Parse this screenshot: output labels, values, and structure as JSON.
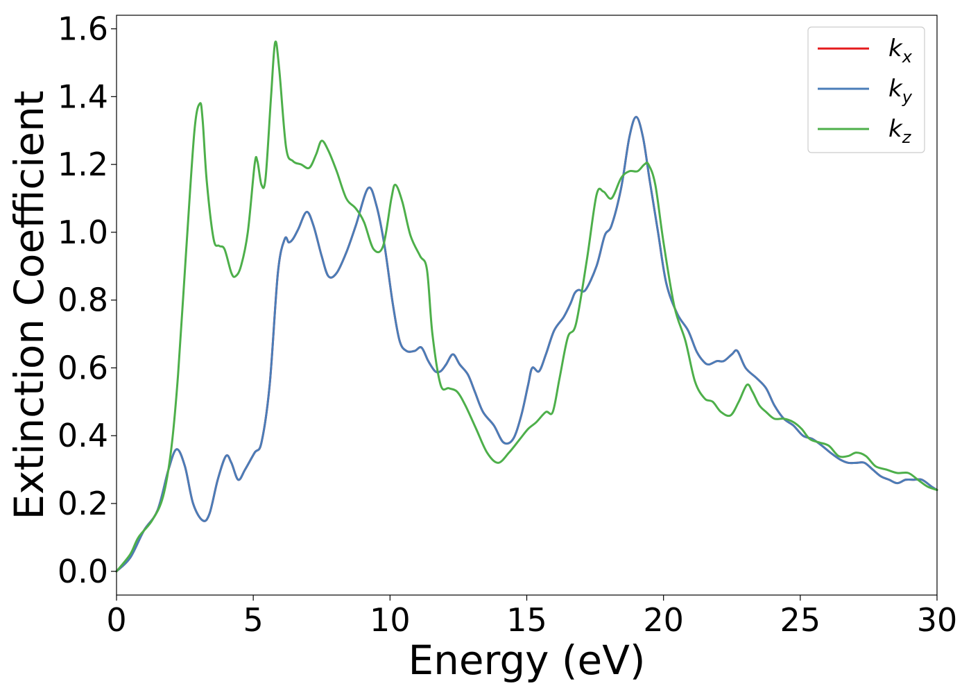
{
  "chart_data": {
    "type": "line",
    "title": "",
    "xlabel": "Energy (eV)",
    "ylabel": "Extinction Coefficient",
    "xlim": [
      0,
      30
    ],
    "ylim": [
      -0.07,
      1.64
    ],
    "xticks": [
      0,
      5,
      10,
      15,
      20,
      25,
      30
    ],
    "xtick_labels": [
      "0",
      "5",
      "10",
      "15",
      "20",
      "25",
      "30"
    ],
    "yticks": [
      0.0,
      0.2,
      0.4,
      0.6,
      0.8,
      1.0,
      1.2,
      1.4,
      1.6
    ],
    "ytick_labels": [
      "0.0",
      "0.2",
      "0.4",
      "0.6",
      "0.8",
      "1.0",
      "1.2",
      "1.4",
      "1.6"
    ],
    "grid": false,
    "legend_position": "top-right",
    "series": [
      {
        "name": "k_x",
        "label_main": "k",
        "label_sub": "x",
        "color": "#e41a1c",
        "x": [
          0,
          0.5,
          1,
          1.5,
          1.9,
          2.2,
          2.5,
          2.8,
          3.15,
          3.4,
          3.7,
          4,
          4.2,
          4.45,
          4.7,
          5.05,
          5.3,
          5.6,
          5.9,
          6.15,
          6.3,
          6.45,
          6.65,
          6.95,
          7.2,
          7.5,
          7.75,
          8.05,
          8.4,
          8.75,
          9.2,
          9.5,
          9.8,
          10.1,
          10.35,
          10.6,
          10.9,
          11.15,
          11.4,
          11.65,
          11.85,
          12.05,
          12.3,
          12.55,
          12.85,
          13.1,
          13.4,
          13.8,
          14.15,
          14.5,
          14.8,
          15.05,
          15.2,
          15.45,
          15.7,
          16,
          16.35,
          16.6,
          16.75,
          16.9,
          17.15,
          17.55,
          17.85,
          18.1,
          18.45,
          18.75,
          19,
          19.25,
          19.5,
          19.8,
          20.1,
          20.5,
          20.9,
          21.2,
          21.45,
          21.65,
          21.95,
          22.2,
          22.5,
          22.7,
          23,
          23.4,
          23.75,
          24.05,
          24.4,
          24.75,
          25.1,
          25.45,
          25.8,
          26.1,
          26.45,
          26.75,
          27.05,
          27.35,
          27.65,
          27.95,
          28.25,
          28.55,
          28.85,
          29.15,
          29.45,
          29.8,
          30
        ],
        "y": [
          0,
          0.04,
          0.12,
          0.18,
          0.3,
          0.36,
          0.31,
          0.2,
          0.15,
          0.17,
          0.27,
          0.34,
          0.32,
          0.27,
          0.3,
          0.35,
          0.38,
          0.55,
          0.88,
          0.98,
          0.97,
          0.98,
          1.01,
          1.06,
          1.02,
          0.93,
          0.87,
          0.88,
          0.94,
          1.02,
          1.13,
          1.08,
          0.96,
          0.79,
          0.68,
          0.65,
          0.65,
          0.66,
          0.62,
          0.59,
          0.59,
          0.61,
          0.64,
          0.61,
          0.58,
          0.53,
          0.47,
          0.43,
          0.38,
          0.39,
          0.46,
          0.55,
          0.6,
          0.59,
          0.64,
          0.71,
          0.75,
          0.79,
          0.82,
          0.83,
          0.83,
          0.9,
          0.99,
          1.02,
          1.13,
          1.28,
          1.34,
          1.28,
          1.15,
          1.0,
          0.85,
          0.76,
          0.71,
          0.65,
          0.62,
          0.61,
          0.62,
          0.62,
          0.64,
          0.65,
          0.6,
          0.57,
          0.54,
          0.49,
          0.45,
          0.43,
          0.4,
          0.39,
          0.37,
          0.35,
          0.33,
          0.32,
          0.32,
          0.32,
          0.3,
          0.28,
          0.27,
          0.26,
          0.27,
          0.27,
          0.27,
          0.25,
          0.24
        ]
      },
      {
        "name": "k_y",
        "label_main": "k",
        "label_sub": "y",
        "color": "#4a7db8",
        "x": [
          0,
          0.5,
          1,
          1.5,
          1.9,
          2.2,
          2.5,
          2.8,
          3.15,
          3.4,
          3.7,
          4,
          4.2,
          4.45,
          4.7,
          5.05,
          5.3,
          5.6,
          5.9,
          6.15,
          6.3,
          6.45,
          6.65,
          6.95,
          7.2,
          7.5,
          7.75,
          8.05,
          8.4,
          8.75,
          9.2,
          9.5,
          9.8,
          10.1,
          10.35,
          10.6,
          10.9,
          11.15,
          11.4,
          11.65,
          11.85,
          12.05,
          12.3,
          12.55,
          12.85,
          13.1,
          13.4,
          13.8,
          14.15,
          14.5,
          14.8,
          15.05,
          15.2,
          15.45,
          15.7,
          16,
          16.35,
          16.6,
          16.75,
          16.9,
          17.15,
          17.55,
          17.85,
          18.1,
          18.45,
          18.75,
          19,
          19.25,
          19.5,
          19.8,
          20.1,
          20.5,
          20.9,
          21.2,
          21.45,
          21.65,
          21.95,
          22.2,
          22.5,
          22.7,
          23,
          23.4,
          23.75,
          24.05,
          24.4,
          24.75,
          25.1,
          25.45,
          25.8,
          26.1,
          26.45,
          26.75,
          27.05,
          27.35,
          27.65,
          27.95,
          28.25,
          28.55,
          28.85,
          29.15,
          29.45,
          29.8,
          30
        ],
        "y": [
          0,
          0.04,
          0.12,
          0.18,
          0.3,
          0.36,
          0.31,
          0.2,
          0.15,
          0.17,
          0.27,
          0.34,
          0.32,
          0.27,
          0.3,
          0.35,
          0.38,
          0.55,
          0.88,
          0.98,
          0.97,
          0.98,
          1.01,
          1.06,
          1.02,
          0.93,
          0.87,
          0.88,
          0.94,
          1.02,
          1.13,
          1.08,
          0.96,
          0.79,
          0.68,
          0.65,
          0.65,
          0.66,
          0.62,
          0.59,
          0.59,
          0.61,
          0.64,
          0.61,
          0.58,
          0.53,
          0.47,
          0.43,
          0.38,
          0.39,
          0.46,
          0.55,
          0.6,
          0.59,
          0.64,
          0.71,
          0.75,
          0.79,
          0.82,
          0.83,
          0.83,
          0.9,
          0.99,
          1.02,
          1.13,
          1.28,
          1.34,
          1.28,
          1.15,
          1.0,
          0.85,
          0.76,
          0.71,
          0.65,
          0.62,
          0.61,
          0.62,
          0.62,
          0.64,
          0.65,
          0.6,
          0.57,
          0.54,
          0.49,
          0.45,
          0.43,
          0.4,
          0.39,
          0.37,
          0.35,
          0.33,
          0.32,
          0.32,
          0.32,
          0.3,
          0.28,
          0.27,
          0.26,
          0.27,
          0.27,
          0.27,
          0.25,
          0.24
        ]
      },
      {
        "name": "k_z",
        "label_main": "k",
        "label_sub": "z",
        "color": "#4daf4a",
        "x": [
          0,
          0.5,
          0.8,
          1.3,
          1.7,
          2,
          2.25,
          2.55,
          2.85,
          3.05,
          3.15,
          3.3,
          3.55,
          3.75,
          3.95,
          4.2,
          4.35,
          4.55,
          4.8,
          5.05,
          5.15,
          5.3,
          5.45,
          5.65,
          5.8,
          5.95,
          6.2,
          6.45,
          6.75,
          7.05,
          7.3,
          7.5,
          7.75,
          8.05,
          8.4,
          8.75,
          9.05,
          9.4,
          9.75,
          10.05,
          10.2,
          10.45,
          10.75,
          11.1,
          11.35,
          11.55,
          11.85,
          12.15,
          12.45,
          12.75,
          13.15,
          13.55,
          13.95,
          14.35,
          14.75,
          15.05,
          15.35,
          15.7,
          15.95,
          16.2,
          16.5,
          16.8,
          17.2,
          17.55,
          17.8,
          18.1,
          18.45,
          18.75,
          19.05,
          19.3,
          19.45,
          19.7,
          20,
          20.4,
          20.8,
          21.15,
          21.5,
          21.8,
          22.1,
          22.45,
          22.75,
          23.05,
          23.25,
          23.5,
          23.75,
          24.05,
          24.4,
          24.75,
          25.05,
          25.35,
          25.7,
          26.05,
          26.4,
          26.75,
          27.05,
          27.4,
          27.75,
          28.15,
          28.55,
          28.95,
          29.3,
          29.65,
          30
        ],
        "y": [
          0,
          0.05,
          0.1,
          0.15,
          0.22,
          0.36,
          0.58,
          0.95,
          1.3,
          1.38,
          1.33,
          1.15,
          0.98,
          0.96,
          0.95,
          0.88,
          0.87,
          0.9,
          1.0,
          1.2,
          1.21,
          1.14,
          1.16,
          1.4,
          1.56,
          1.48,
          1.25,
          1.21,
          1.2,
          1.19,
          1.23,
          1.27,
          1.24,
          1.18,
          1.1,
          1.07,
          1.03,
          0.95,
          0.96,
          1.1,
          1.14,
          1.09,
          0.99,
          0.93,
          0.89,
          0.7,
          0.55,
          0.54,
          0.53,
          0.49,
          0.42,
          0.35,
          0.32,
          0.35,
          0.39,
          0.42,
          0.44,
          0.47,
          0.47,
          0.57,
          0.69,
          0.73,
          0.92,
          1.11,
          1.12,
          1.1,
          1.16,
          1.18,
          1.18,
          1.2,
          1.2,
          1.14,
          0.97,
          0.78,
          0.68,
          0.56,
          0.51,
          0.5,
          0.47,
          0.46,
          0.5,
          0.55,
          0.53,
          0.49,
          0.47,
          0.45,
          0.45,
          0.44,
          0.42,
          0.39,
          0.38,
          0.37,
          0.34,
          0.34,
          0.35,
          0.34,
          0.31,
          0.3,
          0.29,
          0.29,
          0.27,
          0.25,
          0.24
        ]
      }
    ]
  }
}
